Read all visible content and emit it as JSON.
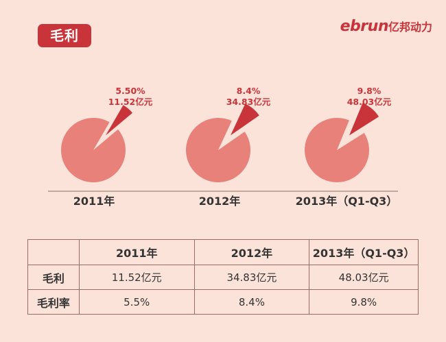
{
  "header": {
    "badge": "毛利",
    "brand_latin": "ebrun",
    "brand_cn": "亿邦动力"
  },
  "colors": {
    "pie_main": "#e8817a",
    "pie_slice": "#c8343a",
    "accent": "#c8343a",
    "background": "#fbe3da"
  },
  "chart_data": {
    "type": "pie",
    "title": "毛利",
    "charts": [
      {
        "category": "2011年",
        "percent_label": "5.50%",
        "value_label": "11.52亿元",
        "percent": 5.5
      },
      {
        "category": "2012年",
        "percent_label": "8.4%",
        "value_label": "34.83亿元",
        "percent": 8.4
      },
      {
        "category": "2013年（Q1-Q3）",
        "percent_label": "9.8%",
        "value_label": "48.03亿元",
        "percent": 9.8
      }
    ]
  },
  "table": {
    "headers": [
      "",
      "2011年",
      "2012年",
      "2013年（Q1-Q3）"
    ],
    "rows": [
      {
        "label": "毛利",
        "cells": [
          "11.52亿元",
          "34.83亿元",
          "48.03亿元"
        ]
      },
      {
        "label": "毛利率",
        "cells": [
          "5.5%",
          "8.4%",
          "9.8%"
        ]
      }
    ]
  }
}
